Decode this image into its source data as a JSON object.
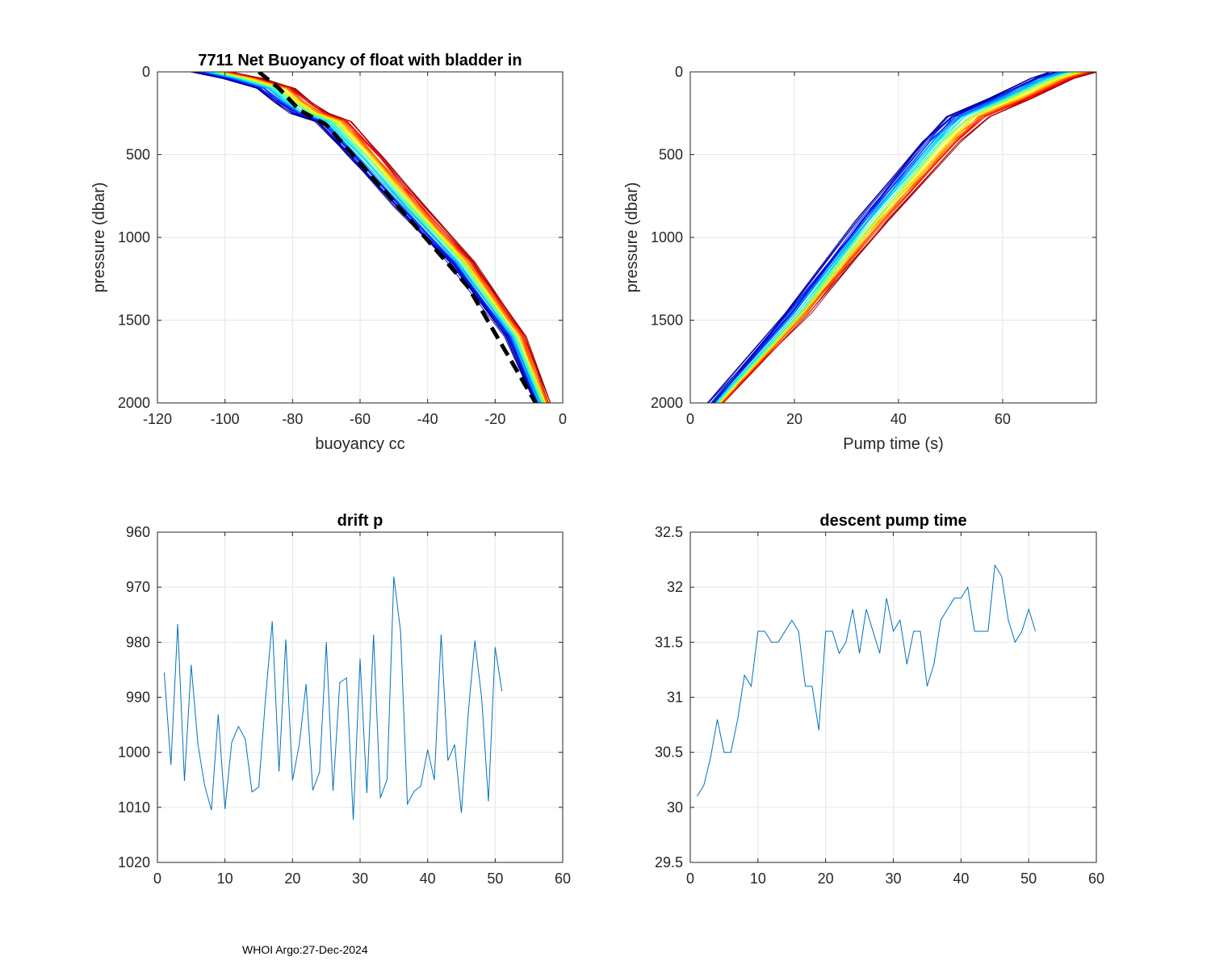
{
  "footer": "WHOI Argo:27-Dec-2024",
  "colors": {
    "axis": "#262626",
    "grid": "#e6e6e6",
    "line": "#0072bd",
    "ref": "#000000"
  },
  "chart_data": [
    {
      "id": "buoyancy",
      "type": "line",
      "title": "7711 Net Buoyancy of float with bladder in",
      "xlabel": "buoyancy cc",
      "ylabel": "pressure (dbar)",
      "xlim": [
        -120,
        0
      ],
      "ylim": [
        0,
        2000
      ],
      "y_reversed": true,
      "xticks": [
        -120,
        -100,
        -80,
        -60,
        -40,
        -20,
        0
      ],
      "yticks": [
        0,
        500,
        1000,
        1500,
        2000
      ],
      "series_count": 51,
      "colormap": "jet",
      "base_profile": {
        "x": [
          -104,
          -95,
          -85,
          -80,
          -75,
          -68,
          -58,
          -45,
          -30,
          -14,
          -6
        ],
        "y": [
          0,
          40,
          100,
          180,
          250,
          300,
          520,
          820,
          1150,
          1600,
          2000
        ]
      },
      "spread_x": [
        -6,
        6
      ],
      "reference_line": {
        "style": "dashed",
        "x": [
          -90,
          -84,
          -78,
          -70,
          -60,
          -45,
          -28,
          -8
        ],
        "y": [
          0,
          100,
          230,
          320,
          550,
          900,
          1300,
          2000
        ]
      }
    },
    {
      "id": "pump",
      "type": "line",
      "title": "",
      "xlabel": "Pump time (s)",
      "ylabel": "pressure (dbar)",
      "xlim": [
        0,
        78
      ],
      "ylim": [
        0,
        2000
      ],
      "y_reversed": true,
      "xticks": [
        0,
        20,
        40,
        60
      ],
      "yticks": [
        0,
        500,
        1000,
        1500,
        2000
      ],
      "series_count": 51,
      "colormap": "jet",
      "base_profile": {
        "x": [
          4.5,
          20,
          34,
          47,
          52,
          60,
          68,
          72
        ],
        "y": [
          2000,
          1460,
          900,
          420,
          270,
          160,
          40,
          0
        ]
      },
      "spread_x": [
        -3,
        6
      ]
    },
    {
      "id": "drift",
      "type": "line",
      "title": "drift p",
      "xlabel": "",
      "ylabel": "",
      "xlim": [
        0,
        60
      ],
      "ylim": [
        960,
        1020
      ],
      "y_reversed": true,
      "xticks": [
        0,
        10,
        20,
        30,
        40,
        50,
        60
      ],
      "yticks": [
        960,
        970,
        980,
        990,
        1000,
        1010,
        1020
      ],
      "x": [
        1,
        2,
        3,
        4,
        5,
        6,
        7,
        8,
        9,
        10,
        11,
        12,
        13,
        14,
        15,
        16,
        17,
        18,
        19,
        20,
        21,
        22,
        23,
        24,
        25,
        26,
        27,
        28,
        29,
        30,
        31,
        32,
        33,
        34,
        35,
        36,
        37,
        38,
        39,
        40,
        41,
        42,
        43,
        44,
        45,
        46,
        47,
        48,
        49,
        50,
        51
      ],
      "values": [
        985.5,
        1002.3,
        976.7,
        1005.2,
        984.1,
        998.6,
        1006.1,
        1010.5,
        993.1,
        1010.3,
        998.2,
        995.3,
        997.6,
        1007.2,
        1006.3,
        990.2,
        976.2,
        1003.5,
        979.5,
        1005.1,
        998.6,
        987.6,
        1006.9,
        1003.6,
        980.0,
        1007.0,
        987.3,
        986.5,
        1012.3,
        983.0,
        1007.4,
        978.6,
        1008.3,
        1004.9,
        968.1,
        978.1,
        1009.4,
        1007.1,
        1006.1,
        999.5,
        1005.0,
        978.6,
        1001.5,
        998.6,
        1011.0,
        993.0,
        979.7,
        990.1,
        1008.9,
        980.9,
        988.9
      ]
    },
    {
      "id": "descent",
      "type": "line",
      "title": "descent pump time",
      "xlabel": "",
      "ylabel": "",
      "xlim": [
        0,
        60
      ],
      "ylim": [
        29.5,
        32.5
      ],
      "y_reversed": false,
      "xticks": [
        0,
        10,
        20,
        30,
        40,
        50,
        60
      ],
      "yticks": [
        29.5,
        30,
        30.5,
        31,
        31.5,
        32,
        32.5
      ],
      "x": [
        1,
        2,
        3,
        4,
        5,
        6,
        7,
        8,
        9,
        10,
        11,
        12,
        13,
        14,
        15,
        16,
        17,
        18,
        19,
        20,
        21,
        22,
        23,
        24,
        25,
        26,
        27,
        28,
        29,
        30,
        31,
        32,
        33,
        34,
        35,
        36,
        37,
        38,
        39,
        40,
        41,
        42,
        43,
        44,
        45,
        46,
        47,
        48,
        49,
        50,
        51
      ],
      "values": [
        30.1,
        30.2,
        30.45,
        30.8,
        30.5,
        30.5,
        30.8,
        31.2,
        31.1,
        31.6,
        31.6,
        31.5,
        31.5,
        31.6,
        31.7,
        31.6,
        31.1,
        31.1,
        30.7,
        31.6,
        31.6,
        31.4,
        31.5,
        31.8,
        31.4,
        31.8,
        31.6,
        31.4,
        31.9,
        31.6,
        31.7,
        31.3,
        31.6,
        31.6,
        31.1,
        31.3,
        31.7,
        31.8,
        31.9,
        31.9,
        32.0,
        31.6,
        31.6,
        31.6,
        32.2,
        32.1,
        31.7,
        31.5,
        31.6,
        31.8,
        31.6
      ]
    }
  ]
}
